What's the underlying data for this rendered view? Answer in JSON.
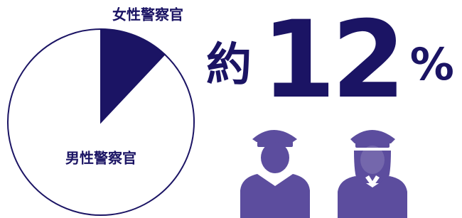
{
  "chart_data": {
    "type": "pie",
    "categories": [
      "女性警察官",
      "男性警察官"
    ],
    "values": [
      12,
      88
    ],
    "value_labels": [
      "約12%",
      null
    ],
    "colors": [
      "#1b1464",
      "#ffffff"
    ],
    "start_angle": 0,
    "direction": "clockwise"
  }
}
